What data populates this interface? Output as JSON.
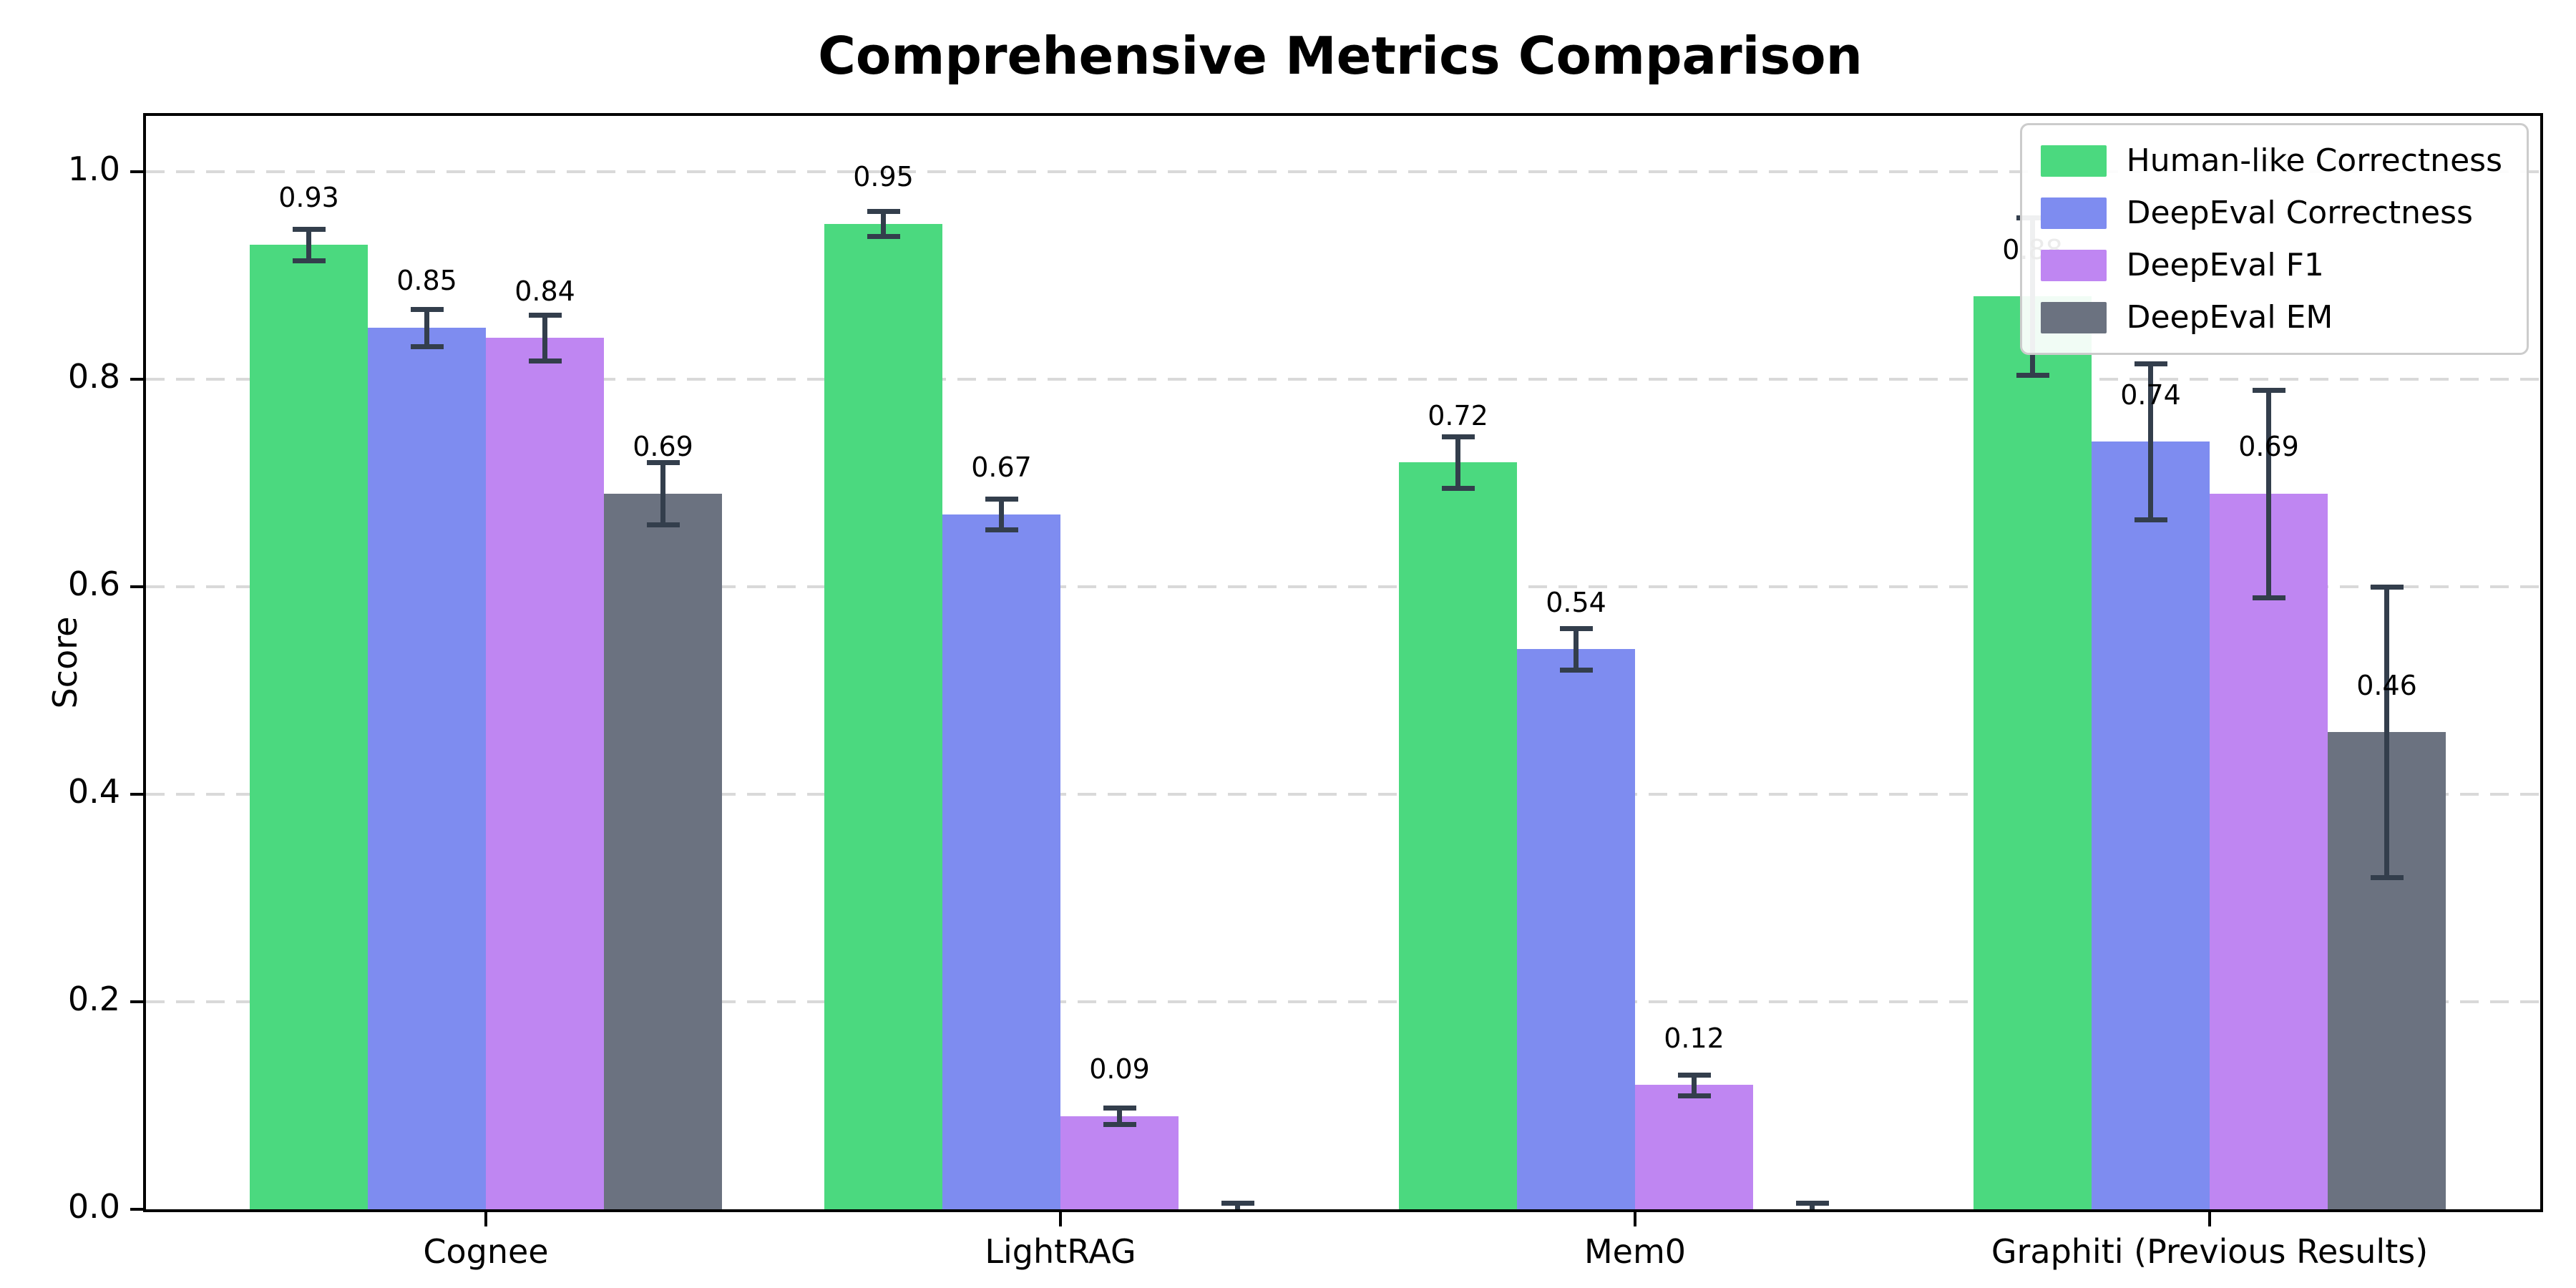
{
  "title": "Comprehensive Metrics Comparison",
  "chart_data": {
    "type": "bar",
    "title": "Comprehensive Metrics Comparison",
    "xlabel": "",
    "ylabel": "Score",
    "ylim": [
      0,
      1.05
    ],
    "yticks": [
      "0.0",
      "0.2",
      "0.4",
      "0.6",
      "0.8",
      "1.0"
    ],
    "grid": "horizontal dashed",
    "legend_position": "upper right",
    "error_bar_color": "#333e4c",
    "categories": [
      "Cognee",
      "LightRAG",
      "Mem0",
      "Graphiti (Previous Results)"
    ],
    "series": [
      {
        "name": "Human-like Correctness",
        "color": "#4bd97f",
        "values": [
          0.93,
          0.95,
          0.72,
          0.88
        ],
        "errors": [
          0.015,
          0.012,
          0.025,
          0.076
        ],
        "labels": [
          "0.93",
          "0.95",
          "0.72",
          "0.88"
        ]
      },
      {
        "name": "DeepEval Correctness",
        "color": "#7e8cf0",
        "values": [
          0.85,
          0.67,
          0.54,
          0.74
        ],
        "errors": [
          0.018,
          0.015,
          0.02,
          0.075
        ],
        "labels": [
          "0.85",
          "0.67",
          "0.54",
          "0.74"
        ]
      },
      {
        "name": "DeepEval F1",
        "color": "#bf86f2",
        "values": [
          0.84,
          0.09,
          0.12,
          0.69
        ],
        "errors": [
          0.022,
          0.008,
          0.01,
          0.1
        ],
        "labels": [
          "0.84",
          "0.09",
          "0.12",
          "0.69"
        ]
      },
      {
        "name": "DeepEval EM",
        "color": "#6b7280",
        "values": [
          0.69,
          0.0,
          0.0,
          0.46
        ],
        "errors": [
          0.03,
          0.006,
          0.006,
          0.14
        ],
        "labels": [
          "0.69",
          null,
          null,
          "0.46"
        ]
      }
    ]
  }
}
